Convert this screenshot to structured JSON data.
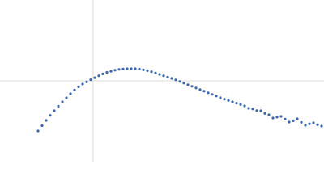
{
  "chart_data": {
    "type": "scatter",
    "xlim": [
      -1.15,
      2.85
    ],
    "ylim": [
      -1,
      1
    ],
    "xticks": [
      0
    ],
    "yticks": [
      0
    ],
    "grid": true,
    "series": [
      {
        "color": "#3b66ae",
        "x": [
          -0.68,
          -0.63,
          -0.58,
          -0.53,
          -0.48,
          -0.43,
          -0.38,
          -0.33,
          -0.28,
          -0.23,
          -0.18,
          -0.13,
          -0.08,
          -0.03,
          0.02,
          0.07,
          0.12,
          0.17,
          0.22,
          0.27,
          0.32,
          0.37,
          0.42,
          0.47,
          0.52,
          0.57,
          0.62,
          0.67,
          0.72,
          0.77,
          0.82,
          0.87,
          0.92,
          0.97,
          1.02,
          1.07,
          1.12,
          1.17,
          1.22,
          1.27,
          1.32,
          1.37,
          1.42,
          1.47,
          1.52,
          1.57,
          1.62,
          1.67,
          1.72,
          1.77,
          1.82,
          1.87,
          1.92,
          1.97,
          2.02,
          2.07,
          2.12,
          2.17,
          2.22,
          2.27,
          2.32,
          2.37,
          2.42,
          2.47,
          2.52,
          2.57,
          2.62,
          2.67,
          2.72,
          2.77,
          2.82
        ],
        "values": [
          -0.62,
          -0.555,
          -0.49,
          -0.427,
          -0.37,
          -0.314,
          -0.26,
          -0.21,
          -0.16,
          -0.114,
          -0.074,
          -0.04,
          -0.013,
          0.014,
          0.039,
          0.063,
          0.086,
          0.105,
          0.119,
          0.132,
          0.142,
          0.147,
          0.15,
          0.15,
          0.15,
          0.146,
          0.136,
          0.126,
          0.113,
          0.097,
          0.08,
          0.063,
          0.047,
          0.03,
          0.012,
          -0.008,
          -0.028,
          -0.048,
          -0.068,
          -0.088,
          -0.108,
          -0.128,
          -0.148,
          -0.168,
          -0.188,
          -0.208,
          -0.227,
          -0.243,
          -0.26,
          -0.277,
          -0.293,
          -0.31,
          -0.34,
          -0.348,
          -0.368,
          -0.37,
          -0.403,
          -0.42,
          -0.46,
          -0.449,
          -0.44,
          -0.474,
          -0.51,
          -0.494,
          -0.47,
          -0.514,
          -0.55,
          -0.532,
          -0.52,
          -0.543,
          -0.56
        ]
      }
    ]
  }
}
